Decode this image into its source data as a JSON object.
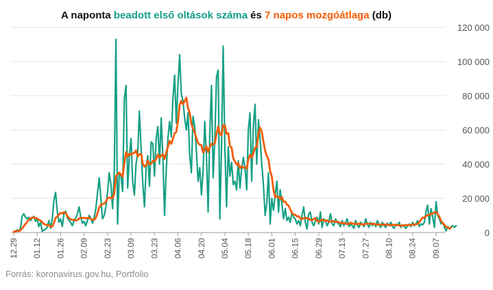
{
  "chart_data": {
    "type": "line",
    "title_parts": [
      {
        "text": "A naponta ",
        "color": "#111111"
      },
      {
        "text": "beadott első oltások száma",
        "color": "#16a085"
      },
      {
        "text": " és ",
        "color": "#111111"
      },
      {
        "text": "7 napos mozgóátlaga",
        "color": "#f25c05"
      },
      {
        "text": " (db)",
        "color": "#111111"
      }
    ],
    "title": "A naponta beadott első oltások száma és 7 napos mozgóátlaga (db)",
    "y_ticks": [
      0,
      20000,
      40000,
      60000,
      80000,
      100000,
      120000
    ],
    "y_tick_labels": [
      "0",
      "20 000",
      "40 000",
      "60 000",
      "80 000",
      "100 000",
      "120 000"
    ],
    "ylim": [
      0,
      120000
    ],
    "x_tick_labels": [
      "12.29",
      "01.12",
      "01.26",
      "02.09",
      "02.23",
      "03.09",
      "03.23",
      "04.06",
      "04.20",
      "05.04",
      "05.18",
      "06.01",
      "06.15",
      "06.29",
      "07.13",
      "07.27",
      "08.10",
      "08.24",
      "09.07"
    ],
    "grid": "horizontal",
    "y_axis_side": "right",
    "x_start_date": "12.29",
    "days_between_ticks": 14,
    "series": [
      {
        "name": "beadott első oltások száma",
        "color": "#16a085",
        "values": [
          500,
          800,
          1500,
          1000,
          2500,
          9500,
          11000,
          9000,
          8000,
          9000,
          7000,
          8500,
          9500,
          6500,
          8000,
          3500,
          6000,
          800,
          1500,
          2000,
          3200,
          7000,
          2500,
          8000,
          19000,
          23500,
          12000,
          6000,
          8000,
          3500,
          11000,
          12500,
          8500,
          7000,
          6000,
          4000,
          7000,
          8500,
          11000,
          15000,
          9000,
          5500,
          6500,
          4000,
          7000,
          10000,
          8500,
          5500,
          9000,
          14000,
          23000,
          32000,
          20000,
          8000,
          10000,
          15000,
          24000,
          35000,
          28000,
          14000,
          36000,
          113000,
          5000,
          35000,
          33000,
          24000,
          78000,
          86000,
          26000,
          45000,
          55000,
          30000,
          22000,
          40000,
          47000,
          71000,
          49000,
          29000,
          15000,
          38000,
          45000,
          27000,
          53000,
          52000,
          33000,
          55000,
          62000,
          40000,
          67000,
          45000,
          10000,
          36000,
          55000,
          65000,
          56000,
          78000,
          92000,
          64000,
          86000,
          104000,
          81000,
          77000,
          67000,
          60000,
          70000,
          45000,
          35000,
          68000,
          62000,
          48000,
          30000,
          38000,
          22000,
          36000,
          65000,
          45000,
          12000,
          58000,
          86000,
          32000,
          55000,
          91000,
          95000,
          8000,
          50000,
          109000,
          49000,
          15000,
          50000,
          33000,
          41000,
          28000,
          30000,
          25000,
          42000,
          26000,
          37000,
          44000,
          38000,
          25000,
          60000,
          70000,
          30000,
          62000,
          75000,
          40000,
          66000,
          55000,
          40000,
          28000,
          10000,
          17000,
          35000,
          5000,
          20000,
          13000,
          22000,
          30000,
          12000,
          25000,
          17000,
          8000,
          14000,
          7000,
          9000,
          6000,
          12000,
          9000,
          8000,
          5000,
          7000,
          4000,
          10000,
          15000,
          6000,
          2000,
          11000,
          12000,
          6000,
          4000,
          7000,
          9000,
          5000,
          12000,
          3000,
          8000,
          7000,
          4000,
          6000,
          11000,
          5000,
          4000,
          8000,
          6000,
          5000,
          3500,
          7000,
          4000,
          6000,
          8000,
          3500,
          5000,
          4000,
          2500,
          7000,
          4500,
          3000,
          6000,
          5000,
          3500,
          8000,
          5000,
          3000,
          6000,
          4000,
          5500,
          3500,
          7000,
          4500,
          3000,
          6000,
          4000,
          3000,
          5500,
          4000,
          6000,
          3500,
          2500,
          5000,
          4000,
          6000,
          3000,
          4500,
          3500,
          2500,
          4000,
          5000,
          3500,
          6000,
          4000,
          5000,
          7000,
          3500,
          5000,
          4500,
          6000,
          12000,
          16000,
          5000,
          14000,
          9000,
          3000,
          18000,
          10000,
          8000,
          5000,
          6000,
          3000,
          1000,
          3500,
          2000,
          3500,
          4000,
          3000,
          4000
        ]
      },
      {
        "name": "7 napos mozgóátlaga",
        "color": "#f25c05",
        "values": [
          500,
          650,
          900,
          950,
          1250,
          2500,
          3700,
          5000,
          6300,
          7600,
          8100,
          8800,
          8800,
          8600,
          8200,
          7400,
          7000,
          6000,
          5000,
          4700,
          4300,
          4400,
          3500,
          3500,
          5700,
          8700,
          9300,
          10600,
          11400,
          11200,
          12000,
          11400,
          9700,
          8500,
          7700,
          7400,
          7500,
          7100,
          7300,
          8200,
          8600,
          8600,
          8600,
          8300,
          8500,
          8800,
          7900,
          7400,
          7500,
          8700,
          11400,
          14600,
          16300,
          16700,
          17000,
          18100,
          20000,
          20600,
          20100,
          20200,
          23000,
          33000,
          34100,
          35000,
          33900,
          32700,
          40400,
          47000,
          44500,
          46100,
          45400,
          46400,
          46500,
          48100,
          44500,
          45700,
          46000,
          40300,
          38500,
          39400,
          42100,
          40000,
          40100,
          41900,
          41600,
          43000,
          45700,
          43700,
          45100,
          45800,
          43000,
          46700,
          50000,
          53600,
          51900,
          54900,
          58100,
          58800,
          64900,
          74700,
          77000,
          75100,
          76900,
          78900,
          72900,
          70000,
          63500,
          60900,
          58600,
          55200,
          52300,
          51400,
          51100,
          46800,
          48400,
          50500,
          47000,
          50000,
          51900,
          51500,
          52300,
          57600,
          62000,
          57800,
          56900,
          62800,
          62600,
          57700,
          58200,
          50700,
          49600,
          43400,
          41600,
          39800,
          40600,
          37700,
          38900,
          37900,
          38100,
          37400,
          42700,
          45400,
          43900,
          46300,
          49600,
          50100,
          57600,
          61400,
          59000,
          53200,
          48000,
          44700,
          42900,
          36100,
          32800,
          24900,
          20700,
          21300,
          20700,
          19600,
          20800,
          18000,
          18100,
          16400,
          15800,
          13600,
          11600,
          10500,
          10400,
          9400,
          9600,
          8200,
          7900,
          8400,
          8700,
          8300,
          8200,
          7400,
          7200,
          8000,
          8400,
          6800,
          6300,
          6900,
          7600,
          7100,
          6600,
          7200,
          6400,
          6400,
          6900,
          6400,
          6300,
          6400,
          6100,
          5500,
          5800,
          5500,
          5300,
          5000,
          5000,
          5800,
          5300,
          5100,
          5100,
          5000,
          5200,
          4900,
          4800,
          4700,
          5100,
          5300,
          5200,
          5000,
          5100,
          5100,
          4800,
          4700,
          4700,
          4700,
          4500,
          4700,
          4700,
          4600,
          4500,
          4200,
          4600,
          4400,
          4300,
          4400,
          4200,
          4100,
          4100,
          4300,
          4400,
          4300,
          4400,
          4400,
          4800,
          4600,
          4900,
          5000,
          6100,
          7600,
          8700,
          8700,
          9600,
          10200,
          10100,
          11000,
          11100,
          11800,
          11900,
          10700,
          9200,
          6700,
          5600,
          4500,
          3300,
          2800,
          2400,
          2900
        ]
      }
    ]
  },
  "source": "Forrás: koronavirus.gov.hu, Portfolio"
}
